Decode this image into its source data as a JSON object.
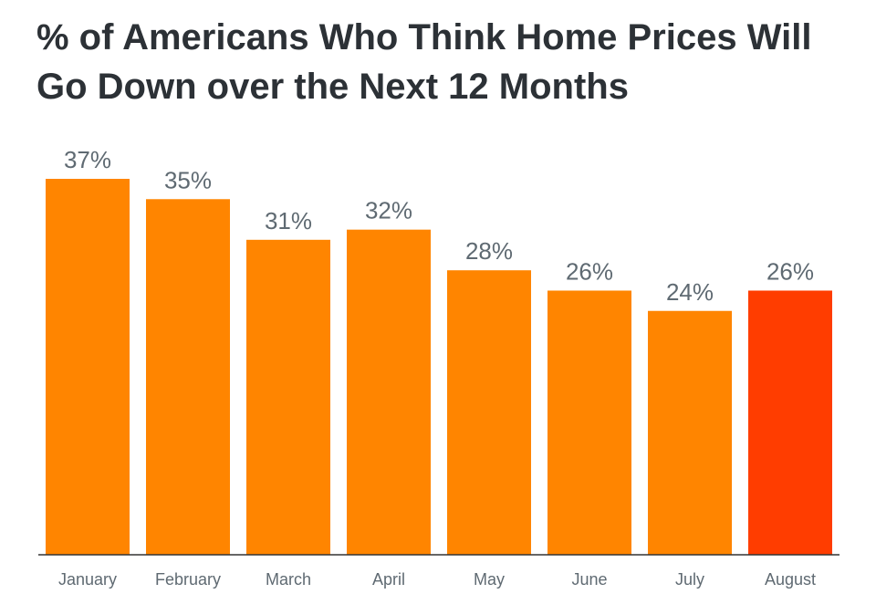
{
  "chart_data": {
    "type": "bar",
    "title": "% of Americans Who Think Home Prices Will Go Down over the Next 12 Months",
    "categories": [
      "January",
      "February",
      "March",
      "April",
      "May",
      "June",
      "July",
      "August"
    ],
    "values": [
      37,
      35,
      31,
      32,
      28,
      26,
      24,
      26
    ],
    "data_labels": [
      "37%",
      "35%",
      "31%",
      "32%",
      "28%",
      "26%",
      "24%",
      "26%"
    ],
    "value_suffix": "%",
    "ylim": [
      0,
      37
    ],
    "grid": false,
    "legend": "none",
    "colors": {
      "bar": "#ff8500",
      "highlight_bar": "#ff3d00",
      "highlight_category": "August",
      "axis": "#333333",
      "text": "#5f6a72",
      "title": "#2c3136"
    }
  }
}
